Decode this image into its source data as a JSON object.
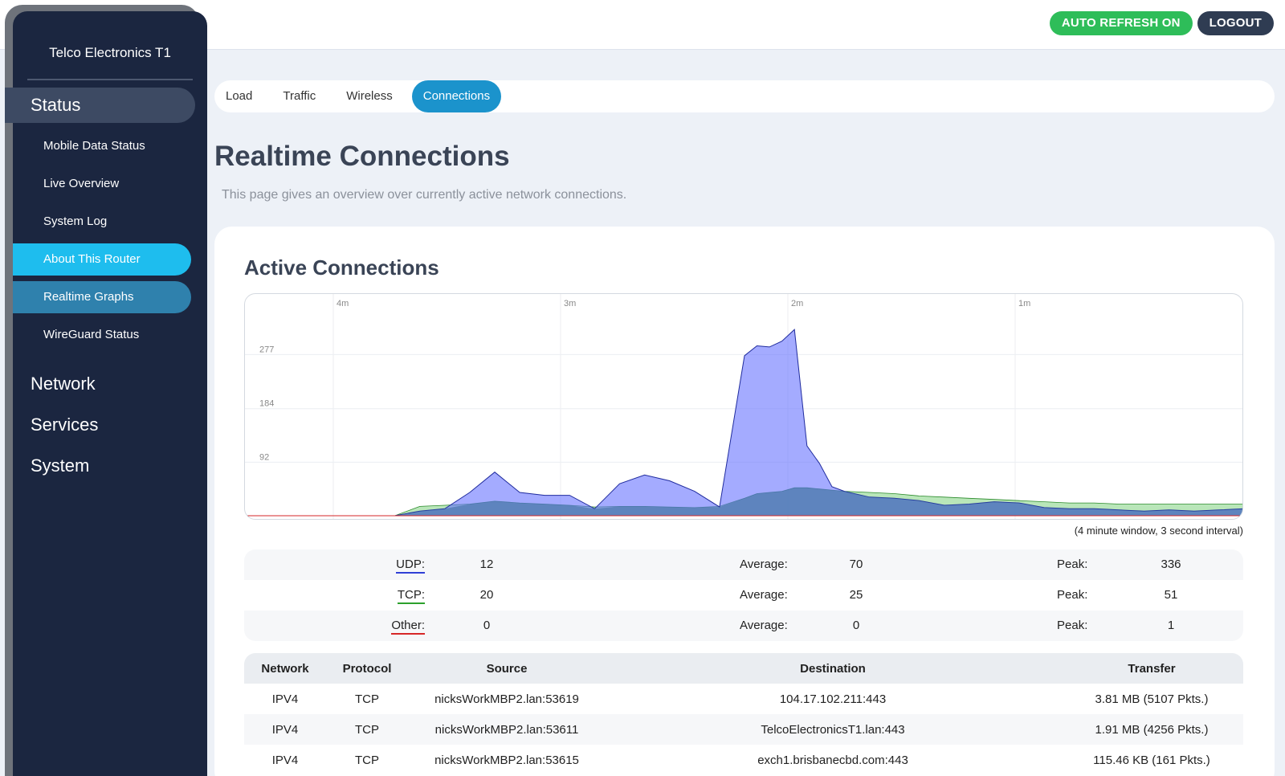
{
  "header": {
    "auto_refresh_label": "AUTO REFRESH ON",
    "logout_label": "LOGOUT",
    "auto_refresh_color": "#2ebd59"
  },
  "sidebar": {
    "brand": "Telco Electronics T1",
    "section": "Status",
    "items": [
      {
        "label": "Mobile Data Status",
        "state": "normal"
      },
      {
        "label": "Live Overview",
        "state": "normal"
      },
      {
        "label": "System Log",
        "state": "normal"
      },
      {
        "label": "About This Router",
        "state": "active"
      },
      {
        "label": "Realtime Graphs",
        "state": "highlight"
      },
      {
        "label": "WireGuard Status",
        "state": "normal"
      }
    ],
    "main_items": [
      "Network",
      "Services",
      "System"
    ]
  },
  "tabs": [
    {
      "label": "Load",
      "active": false
    },
    {
      "label": "Traffic",
      "active": false
    },
    {
      "label": "Wireless",
      "active": false
    },
    {
      "label": "Connections",
      "active": true
    }
  ],
  "page": {
    "title": "Realtime Connections",
    "description": "This page gives an overview over currently active network connections."
  },
  "card": {
    "title": "Active Connections",
    "window_note": "(4 minute window, 3 second interval)"
  },
  "chart_data": {
    "type": "area",
    "x_tick_labels": [
      "4m",
      "3m",
      "2m",
      "1m"
    ],
    "y_tick_labels": [
      "277",
      "184",
      "92"
    ],
    "ylim": [
      0,
      370
    ],
    "grid": true,
    "x_unit": "seconds ago",
    "x": [
      240,
      234,
      228,
      222,
      216,
      210,
      204,
      198,
      192,
      186,
      180,
      174,
      168,
      162,
      156,
      150,
      144,
      138,
      132,
      126,
      120,
      117,
      114,
      111,
      108,
      105,
      102,
      99,
      96,
      90,
      84,
      78,
      72,
      66,
      60,
      54,
      48,
      42,
      36,
      30,
      24,
      18,
      12,
      6,
      0
    ],
    "series": [
      {
        "name": "UDP",
        "color": "#6873ff",
        "values": [
          0,
          0,
          0,
          0,
          0,
          0,
          0,
          8,
          12,
          40,
          75,
          40,
          35,
          35,
          12,
          55,
          70,
          60,
          42,
          15,
          275,
          292,
          290,
          300,
          320,
          120,
          90,
          50,
          42,
          32,
          30,
          26,
          18,
          20,
          24,
          22,
          14,
          12,
          12,
          10,
          8,
          10,
          8,
          10,
          12
        ]
      },
      {
        "name": "TCP",
        "color": "#2ca02c",
        "values": [
          0,
          0,
          0,
          0,
          0,
          0,
          0,
          16,
          18,
          20,
          25,
          22,
          20,
          18,
          15,
          16,
          16,
          15,
          14,
          16,
          30,
          38,
          40,
          42,
          48,
          48,
          46,
          44,
          42,
          40,
          38,
          34,
          32,
          30,
          28,
          26,
          24,
          22,
          22,
          20,
          20,
          20,
          20,
          20,
          20
        ]
      },
      {
        "name": "Other",
        "color": "#d62728",
        "values": [
          0,
          0,
          0,
          0,
          0,
          0,
          0,
          0,
          0,
          0,
          0,
          0,
          0,
          0,
          0,
          0,
          0,
          0,
          0,
          0,
          0,
          0,
          0,
          0,
          0,
          0,
          0,
          0,
          0,
          0,
          0,
          0,
          0,
          0,
          0,
          0,
          0,
          0,
          0,
          0,
          0,
          0,
          0,
          0,
          0
        ]
      }
    ]
  },
  "stats": [
    {
      "label": "UDP:",
      "value": "12",
      "avg_label": "Average:",
      "avg": "70",
      "peak_label": "Peak:",
      "peak": "336",
      "color": "#2f3fd6"
    },
    {
      "label": "TCP:",
      "value": "20",
      "avg_label": "Average:",
      "avg": "25",
      "peak_label": "Peak:",
      "peak": "51",
      "color": "#2ca02c"
    },
    {
      "label": "Other:",
      "value": "0",
      "avg_label": "Average:",
      "avg": "0",
      "peak_label": "Peak:",
      "peak": "1",
      "color": "#d62728"
    }
  ],
  "table": {
    "headers": [
      "Network",
      "Protocol",
      "Source",
      "Destination",
      "Transfer"
    ],
    "rows": [
      [
        "IPV4",
        "TCP",
        "nicksWorkMBP2.lan:53619",
        "104.17.102.211:443",
        "3.81 MB (5107 Pkts.)"
      ],
      [
        "IPV4",
        "TCP",
        "nicksWorkMBP2.lan:53611",
        "TelcoElectronicsT1.lan:443",
        "1.91 MB (4256 Pkts.)"
      ],
      [
        "IPV4",
        "TCP",
        "nicksWorkMBP2.lan:53615",
        "exch1.brisbanecbd.com:443",
        "115.46 KB (161 Pkts.)"
      ]
    ]
  }
}
